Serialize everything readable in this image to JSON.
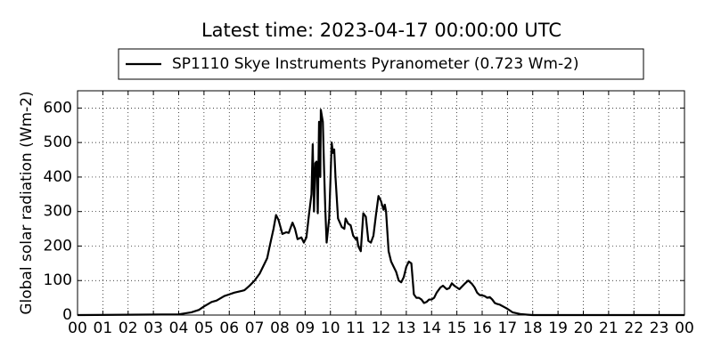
{
  "chart_data": {
    "type": "line",
    "title": "Latest time: 2023-04-17 00:00:00 UTC",
    "y_label": "Global solar radiation (Wm-2)",
    "legend": "upper center",
    "grid": true,
    "x": [
      0,
      4.0,
      4.5,
      4.8,
      5.0,
      5.3,
      5.5,
      5.8,
      6.0,
      6.2,
      6.5,
      6.6,
      6.8,
      7.0,
      7.2,
      7.4,
      7.5,
      7.6,
      7.75,
      7.85,
      7.95,
      8.1,
      8.25,
      8.35,
      8.5,
      8.6,
      8.7,
      8.85,
      8.95,
      9.05,
      9.15,
      9.25,
      9.3,
      9.35,
      9.4,
      9.45,
      9.5,
      9.55,
      9.6,
      9.62,
      9.7,
      9.75,
      9.8,
      9.85,
      9.95,
      10.05,
      10.1,
      10.15,
      10.2,
      10.3,
      10.45,
      10.55,
      10.6,
      10.7,
      10.8,
      10.9,
      11.0,
      11.05,
      11.1,
      11.2,
      11.3,
      11.4,
      11.5,
      11.6,
      11.7,
      11.8,
      11.9,
      12.0,
      12.1,
      12.15,
      12.2,
      12.3,
      12.4,
      12.5,
      12.6,
      12.7,
      12.8,
      12.9,
      13.0,
      13.1,
      13.2,
      13.3,
      13.4,
      13.5,
      13.6,
      13.7,
      13.8,
      13.9,
      14.0,
      14.1,
      14.2,
      14.35,
      14.45,
      14.6,
      14.7,
      14.8,
      14.9,
      15.0,
      15.1,
      15.3,
      15.45,
      15.6,
      15.7,
      15.8,
      15.9,
      16.0,
      16.1,
      16.2,
      16.3,
      16.4,
      16.5,
      16.6,
      16.7,
      16.9,
      17.0,
      17.2,
      17.5,
      17.8,
      18,
      24
    ],
    "series": [
      {
        "name": "SP1110 Skye Instruments Pyranometer (0.723 Wm-2)",
        "color": "#000000",
        "values": [
          0,
          2,
          8,
          15,
          25,
          38,
          42,
          55,
          60,
          65,
          70,
          72,
          85,
          100,
          120,
          150,
          165,
          200,
          250,
          290,
          275,
          235,
          240,
          238,
          268,
          250,
          220,
          225,
          210,
          225,
          290,
          350,
          495,
          300,
          440,
          445,
          295,
          560,
          400,
          595,
          560,
          420,
          300,
          210,
          280,
          500,
          470,
          480,
          400,
          280,
          255,
          250,
          280,
          265,
          260,
          230,
          220,
          225,
          200,
          185,
          295,
          285,
          215,
          210,
          230,
          290,
          345,
          330,
          305,
          320,
          300,
          185,
          155,
          140,
          125,
          100,
          95,
          110,
          140,
          155,
          150,
          60,
          50,
          50,
          45,
          35,
          38,
          45,
          45,
          50,
          65,
          80,
          85,
          75,
          78,
          92,
          85,
          80,
          75,
          90,
          100,
          90,
          80,
          65,
          58,
          57,
          55,
          50,
          52,
          45,
          35,
          32,
          30,
          22,
          18,
          8,
          3,
          1,
          0,
          0
        ]
      }
    ],
    "xlim": [
      0,
      24
    ],
    "xticks": [
      {
        "value": 0,
        "label": "00"
      },
      {
        "value": 1,
        "label": "01"
      },
      {
        "value": 2,
        "label": "02"
      },
      {
        "value": 3,
        "label": "03"
      },
      {
        "value": 4,
        "label": "04"
      },
      {
        "value": 5,
        "label": "05"
      },
      {
        "value": 6,
        "label": "06"
      },
      {
        "value": 7,
        "label": "07"
      },
      {
        "value": 8,
        "label": "08"
      },
      {
        "value": 9,
        "label": "09"
      },
      {
        "value": 10,
        "label": "10"
      },
      {
        "value": 11,
        "label": "11"
      },
      {
        "value": 12,
        "label": "12"
      },
      {
        "value": 13,
        "label": "13"
      },
      {
        "value": 14,
        "label": "14"
      },
      {
        "value": 15,
        "label": "15"
      },
      {
        "value": 16,
        "label": "16"
      },
      {
        "value": 17,
        "label": "17"
      },
      {
        "value": 18,
        "label": "18"
      },
      {
        "value": 19,
        "label": "19"
      },
      {
        "value": 20,
        "label": "20"
      },
      {
        "value": 21,
        "label": "21"
      },
      {
        "value": 22,
        "label": "22"
      },
      {
        "value": 23,
        "label": "23"
      },
      {
        "value": 24,
        "label": "00"
      }
    ],
    "ylim": [
      0,
      650
    ],
    "yticks": [
      0,
      100,
      200,
      300,
      400,
      500,
      600
    ]
  }
}
